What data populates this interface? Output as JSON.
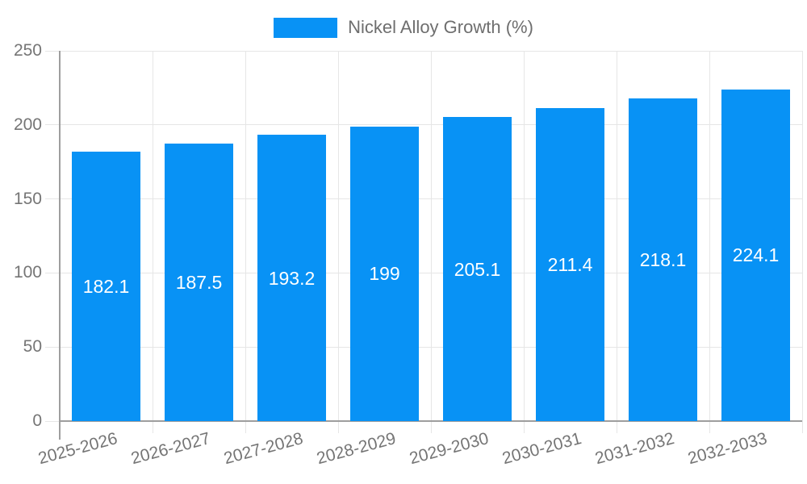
{
  "legend": {
    "label": "Nickel Alloy Growth (%)"
  },
  "colors": {
    "bar": "#0892f5",
    "grid": "#e6e6e6",
    "axis": "#9e9e9e",
    "tick_label": "#757575",
    "value_label": "#ffffff",
    "background": "#ffffff"
  },
  "chart_data": {
    "type": "bar",
    "title": "",
    "xlabel": "",
    "ylabel": "",
    "categories": [
      "2025-2026",
      "2026-2027",
      "2027-2028",
      "2028-2029",
      "2029-2030",
      "2030-2031",
      "2031-2032",
      "2032-2033"
    ],
    "series": [
      {
        "name": "Nickel Alloy Growth (%)",
        "values": [
          182.1,
          187.5,
          193.2,
          199,
          205.1,
          211.4,
          218.1,
          224.1
        ]
      }
    ],
    "ylim": [
      0,
      250
    ],
    "yticks": [
      0,
      50,
      100,
      150,
      200,
      250
    ],
    "grid": true,
    "legend_position": "top",
    "value_label_position": "inside-middle"
  }
}
